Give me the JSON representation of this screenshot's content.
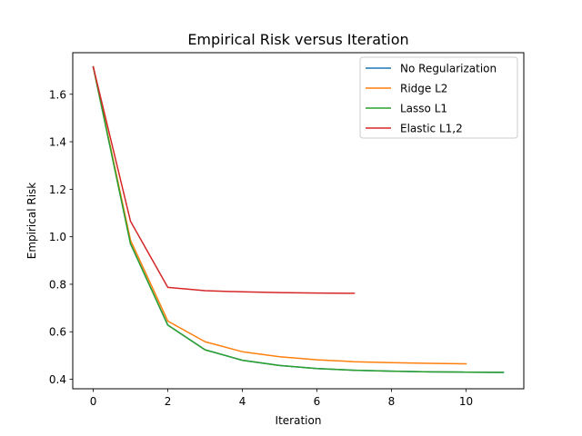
{
  "chart_data": {
    "type": "line",
    "title": "Empirical Risk versus Iteration",
    "xlabel": "Iteration",
    "ylabel": "Empirical Risk",
    "xlim": [
      -0.55,
      11.55
    ],
    "ylim": [
      0.36,
      1.775
    ],
    "xticks": [
      0,
      2,
      4,
      6,
      8,
      10
    ],
    "yticks": [
      0.4,
      0.6,
      0.8,
      1.0,
      1.2,
      1.4,
      1.6
    ],
    "xtick_labels": [
      "0",
      "2",
      "4",
      "6",
      "8",
      "10"
    ],
    "ytick_labels": [
      "0.4",
      "0.6",
      "0.8",
      "1.0",
      "1.2",
      "1.4",
      "1.6"
    ],
    "grid": false,
    "legend": "top-right",
    "series": [
      {
        "name": "No Regularization",
        "color": "#1f77b4",
        "x": [
          0,
          1,
          2,
          3,
          4,
          5,
          6,
          7,
          8,
          9,
          10,
          11
        ],
        "y": [
          1.715,
          0.97,
          0.628,
          0.524,
          0.48,
          0.458,
          0.445,
          0.438,
          0.434,
          0.431,
          0.43,
          0.429
        ]
      },
      {
        "name": "Ridge L2",
        "color": "#ff7f0e",
        "x": [
          0,
          1,
          2,
          3,
          4,
          5,
          6,
          7,
          8,
          9,
          10
        ],
        "y": [
          1.715,
          0.985,
          0.645,
          0.558,
          0.516,
          0.495,
          0.482,
          0.474,
          0.47,
          0.467,
          0.465
        ]
      },
      {
        "name": "Lasso L1",
        "color": "#2ca02c",
        "x": [
          0,
          1,
          2,
          3,
          4,
          5,
          6,
          7,
          8,
          9,
          10,
          11
        ],
        "y": [
          1.715,
          0.97,
          0.628,
          0.524,
          0.48,
          0.458,
          0.445,
          0.438,
          0.434,
          0.431,
          0.43,
          0.429
        ]
      },
      {
        "name": "Elastic L1,2",
        "color": "#d62728",
        "x": [
          0,
          1,
          2,
          3,
          4,
          5,
          6,
          7
        ],
        "y": [
          1.715,
          1.065,
          0.787,
          0.773,
          0.768,
          0.765,
          0.763,
          0.762
        ]
      }
    ]
  }
}
